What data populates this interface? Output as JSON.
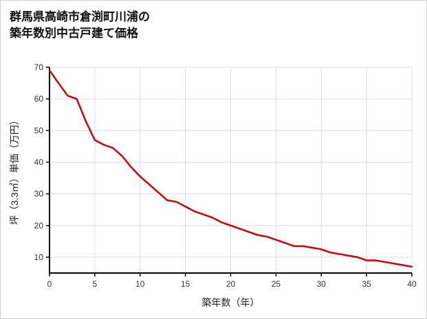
{
  "header": {
    "title_line1": "群馬県高崎市倉渕町川浦の",
    "title_line2": "築年数別中古戸建て価格"
  },
  "chart_data": {
    "type": "line",
    "title": "群馬県高崎市倉渕町川浦の築年数別中古戸建て価格",
    "xlabel": "築年数（年）",
    "ylabel": "坪（3.3㎡）単価（万円）",
    "xlim": [
      0,
      40
    ],
    "ylim": [
      5,
      70
    ],
    "xticks": [
      0,
      5,
      10,
      15,
      20,
      25,
      30,
      35,
      40
    ],
    "yticks": [
      10,
      20,
      30,
      40,
      50,
      60,
      70
    ],
    "grid": true,
    "legend_position": "none",
    "series_name": "坪単価（万円）",
    "x": [
      0,
      1,
      2,
      3,
      4,
      5,
      6,
      7,
      8,
      9,
      10,
      11,
      12,
      13,
      14,
      15,
      16,
      17,
      18,
      19,
      20,
      21,
      22,
      23,
      24,
      25,
      26,
      27,
      28,
      29,
      30,
      31,
      32,
      33,
      34,
      35,
      36,
      37,
      38,
      39,
      40
    ],
    "values": [
      69,
      65,
      61,
      60,
      53,
      47,
      45.5,
      44.5,
      42,
      38.5,
      35.5,
      33,
      30.5,
      28,
      27.5,
      26,
      24.5,
      23.5,
      22.5,
      21,
      20,
      19,
      18,
      17,
      16.5,
      15.5,
      14.5,
      13.5,
      13.5,
      13,
      12.5,
      11.5,
      11,
      10.5,
      10,
      9,
      9,
      8.5,
      8,
      7.5,
      7
    ],
    "colors": {
      "line": "#cc0a0e",
      "grid": "#dddddd",
      "axis": "#000000",
      "tick_text": "#333333"
    }
  }
}
